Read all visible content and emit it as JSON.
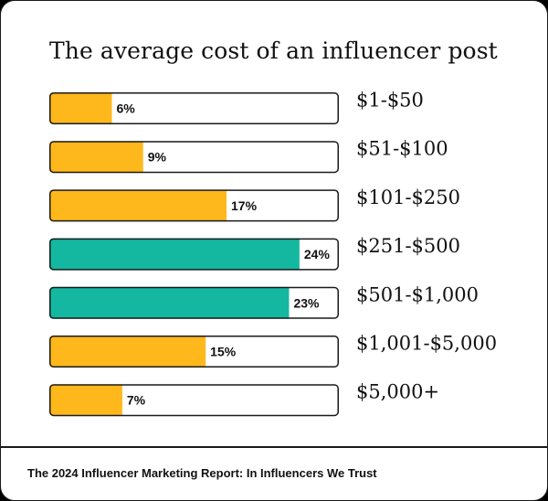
{
  "chart_data": {
    "type": "bar",
    "orientation": "horizontal",
    "title": "The average cost of an influencer post",
    "categories": [
      "$1-$50",
      "$51-$100",
      "$101-$250",
      "$251-$500",
      "$501-$1,000",
      "$1,001-$5,000",
      "$5,000+"
    ],
    "values": [
      6,
      9,
      17,
      24,
      23,
      15,
      7
    ],
    "value_labels": [
      "6%",
      "9%",
      "17%",
      "24%",
      "23%",
      "15%",
      "7%"
    ],
    "unit": "%",
    "xlim": [
      0,
      100
    ],
    "highlighted": [
      false,
      false,
      false,
      true,
      true,
      false,
      false
    ],
    "colors": {
      "default": "#FFB81C",
      "highlight": "#14B8A0",
      "outline": "#1a1a1a"
    }
  },
  "footer": {
    "source": "The 2024 Influencer Marketing Report: In Influencers We Trust"
  }
}
